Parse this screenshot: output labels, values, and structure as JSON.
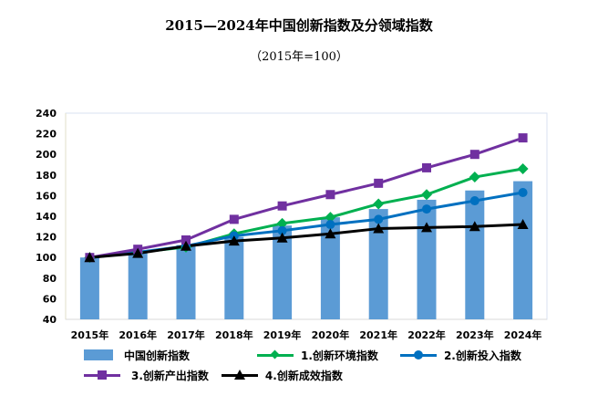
{
  "title": "2015—2024年中国创新指数及分领域指数",
  "subtitle": "（2015年=100）",
  "chart_data": {
    "type": "bar+line",
    "title": "2015—2024年中国创新指数及分领域指数",
    "subtitle": "（2015年=100）",
    "categories": [
      "2015年",
      "2016年",
      "2017年",
      "2018年",
      "2019年",
      "2020年",
      "2021年",
      "2022年",
      "2023年",
      "2024年"
    ],
    "ylim": [
      40,
      240
    ],
    "yticks": [
      "40",
      "60",
      "80",
      "100",
      "120",
      "140",
      "160",
      "180",
      "200",
      "220",
      "240"
    ],
    "grid": false,
    "legend_position": "bottom",
    "series": [
      {
        "name": "中国创新指数",
        "kind": "bar",
        "color": "#5b9bd5",
        "values": [
          100,
          105.5,
          112,
          120,
          131,
          139,
          147,
          156,
          165,
          174
        ]
      },
      {
        "name": "1.创新环境指数",
        "kind": "line",
        "marker": "diamond",
        "color": "#00b050",
        "values": [
          100,
          105,
          110,
          123,
          133,
          139,
          152,
          161,
          178,
          186
        ]
      },
      {
        "name": "2.创新投入指数",
        "kind": "line",
        "marker": "circle",
        "color": "#0070c0",
        "values": [
          100,
          105,
          111,
          121,
          126,
          132,
          137,
          147,
          155,
          163
        ]
      },
      {
        "name": "3.创新产出指数",
        "kind": "line",
        "marker": "square",
        "color": "#7030a0",
        "values": [
          100,
          108,
          117,
          137,
          150,
          161,
          172,
          187,
          200,
          216
        ]
      },
      {
        "name": "4.创新成效指数",
        "kind": "line",
        "marker": "triangle",
        "color": "#000000",
        "values": [
          100,
          104,
          111,
          116,
          119,
          123,
          128,
          129,
          130,
          132
        ]
      }
    ]
  }
}
